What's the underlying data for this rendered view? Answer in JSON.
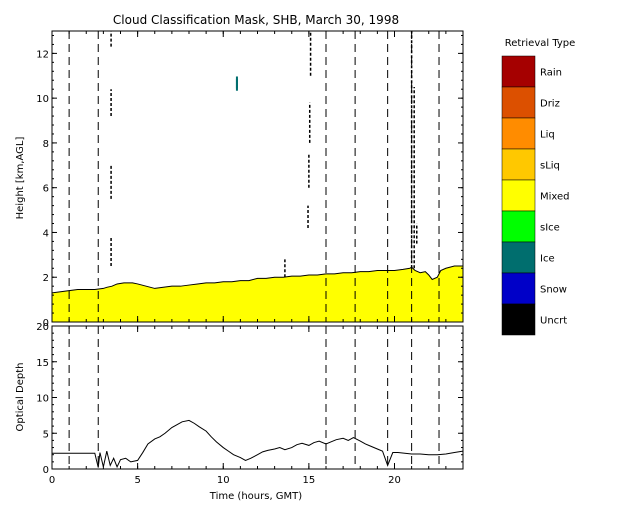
{
  "chart_data": [
    {
      "type": "area",
      "title": "Cloud Classification Mask, SHB, March 30, 1998",
      "xlabel": "",
      "ylabel": "Height [km,AGL]",
      "xlim": [
        0,
        24
      ],
      "ylim": [
        0,
        13
      ],
      "y_ticks": [
        0,
        2,
        4,
        6,
        8,
        10,
        12
      ],
      "x_ticks": [
        0,
        5,
        10,
        15,
        20
      ],
      "vertical_dashed_lines": [
        1.0,
        2.7,
        16.0,
        17.7,
        19.6,
        21.0,
        22.6
      ],
      "series": [
        {
          "name": "Mixed",
          "color": "#ffff00",
          "x": [
            0,
            0.5,
            1,
            1.5,
            2,
            2.5,
            3,
            3.2,
            3.5,
            3.8,
            4.2,
            4.7,
            5,
            5.5,
            6,
            6.5,
            7,
            7.5,
            8,
            8.5,
            9,
            9.5,
            10,
            10.5,
            11,
            11.5,
            12,
            12.5,
            13,
            13.5,
            14,
            14.5,
            15,
            15.5,
            16,
            16.5,
            17,
            17.5,
            18,
            18.5,
            19,
            19.5,
            20,
            20.5,
            20.9,
            21.0,
            21.2,
            21.5,
            21.8,
            22.0,
            22.2,
            22.5,
            22.7,
            23.0,
            23.5,
            24
          ],
          "top_km": [
            1.3,
            1.35,
            1.4,
            1.45,
            1.45,
            1.45,
            1.5,
            1.55,
            1.6,
            1.7,
            1.75,
            1.75,
            1.7,
            1.6,
            1.5,
            1.55,
            1.6,
            1.6,
            1.65,
            1.7,
            1.75,
            1.75,
            1.8,
            1.8,
            1.85,
            1.85,
            1.95,
            1.95,
            2.0,
            2.0,
            2.05,
            2.05,
            2.1,
            2.1,
            2.15,
            2.15,
            2.2,
            2.2,
            2.25,
            2.25,
            2.3,
            2.3,
            2.3,
            2.35,
            2.4,
            2.45,
            2.3,
            2.2,
            2.25,
            2.1,
            1.9,
            2.0,
            2.3,
            2.4,
            2.5,
            2.5
          ]
        },
        {
          "name": "Ice",
          "color": "#006e6e",
          "points": [
            [
              10.8,
              10.7
            ],
            [
              10.8,
              10.6
            ]
          ]
        }
      ],
      "cloud_streaks_km": [
        {
          "x": 3.45,
          "y0": 12.3,
          "y1": 13.0
        },
        {
          "x": 3.45,
          "y0": 9.2,
          "y1": 10.4
        },
        {
          "x": 3.45,
          "y0": 5.5,
          "y1": 7.0
        },
        {
          "x": 3.45,
          "y0": 2.5,
          "y1": 3.8
        },
        {
          "x": 15.1,
          "y0": 11.0,
          "y1": 13.0
        },
        {
          "x": 15.05,
          "y0": 8.0,
          "y1": 9.8
        },
        {
          "x": 15.0,
          "y0": 6.0,
          "y1": 7.5
        },
        {
          "x": 14.95,
          "y0": 4.2,
          "y1": 5.2
        },
        {
          "x": 21.0,
          "y0": 2.4,
          "y1": 13.0
        },
        {
          "x": 21.15,
          "y0": 2.4,
          "y1": 10.5
        },
        {
          "x": 21.3,
          "y0": 3.5,
          "y1": 4.4
        },
        {
          "x": 13.6,
          "y0": 2.0,
          "y1": 2.8
        }
      ]
    },
    {
      "type": "line",
      "title": "",
      "xlabel": "Time (hours, GMT)",
      "ylabel": "Optical Depth",
      "xlim": [
        0,
        24
      ],
      "ylim": [
        0,
        20
      ],
      "y_ticks": [
        0,
        5,
        10,
        15,
        20
      ],
      "x_ticks": [
        0,
        5,
        10,
        15,
        20
      ],
      "vertical_dashed_lines": [
        1.0,
        2.7,
        16.0,
        17.7,
        19.6,
        21.0,
        22.6
      ],
      "series": [
        {
          "name": "",
          "x": [
            0,
            0.5,
            1,
            1.5,
            2,
            2.5,
            2.7,
            2.8,
            3.0,
            3.2,
            3.4,
            3.6,
            3.8,
            4.0,
            4.3,
            4.6,
            5.0,
            5.3,
            5.6,
            6.0,
            6.3,
            6.6,
            7.0,
            7.3,
            7.6,
            8.0,
            8.3,
            8.6,
            9.0,
            9.3,
            9.6,
            10.0,
            10.3,
            10.6,
            11.0,
            11.3,
            11.6,
            12.0,
            12.3,
            12.6,
            13.0,
            13.3,
            13.6,
            14.0,
            14.3,
            14.6,
            15.0,
            15.3,
            15.6,
            16.0,
            16.3,
            16.6,
            17.0,
            17.3,
            17.6,
            18.0,
            18.3,
            18.6,
            19.0,
            19.3,
            19.6,
            19.9,
            20.2,
            20.6,
            21.0,
            21.5,
            22.0,
            22.5,
            23.0,
            23.5,
            24.0
          ],
          "y": [
            2.2,
            2.2,
            2.2,
            2.2,
            2.2,
            2.2,
            0.2,
            2.3,
            0.3,
            2.5,
            0.5,
            1.5,
            0.3,
            1.3,
            1.5,
            1.0,
            1.2,
            2.3,
            3.5,
            4.2,
            4.5,
            5.0,
            5.8,
            6.2,
            6.6,
            6.8,
            6.4,
            5.9,
            5.3,
            4.5,
            3.8,
            3.0,
            2.5,
            2.0,
            1.6,
            1.2,
            1.5,
            2.0,
            2.4,
            2.6,
            2.8,
            3.0,
            2.7,
            3.0,
            3.4,
            3.6,
            3.3,
            3.7,
            3.9,
            3.5,
            3.8,
            4.1,
            4.3,
            4.0,
            4.4,
            3.9,
            3.5,
            3.2,
            2.8,
            2.5,
            0.5,
            2.3,
            2.3,
            2.2,
            2.1,
            2.1,
            2.0,
            2.0,
            2.1,
            2.3,
            2.5
          ]
        }
      ]
    }
  ],
  "legend": {
    "title": "Retrieval Type",
    "items": [
      {
        "label": "Rain",
        "color": "#a50000"
      },
      {
        "label": "Driz",
        "color": "#dc5000"
      },
      {
        "label": "Liq",
        "color": "#ff8c00"
      },
      {
        "label": "sLiq",
        "color": "#ffc800"
      },
      {
        "label": "Mixed",
        "color": "#ffff00"
      },
      {
        "label": "sIce",
        "color": "#00ff00"
      },
      {
        "label": "Ice",
        "color": "#006e6e"
      },
      {
        "label": "Snow",
        "color": "#0000c8"
      },
      {
        "label": "Uncrt",
        "color": "#000000"
      }
    ]
  }
}
